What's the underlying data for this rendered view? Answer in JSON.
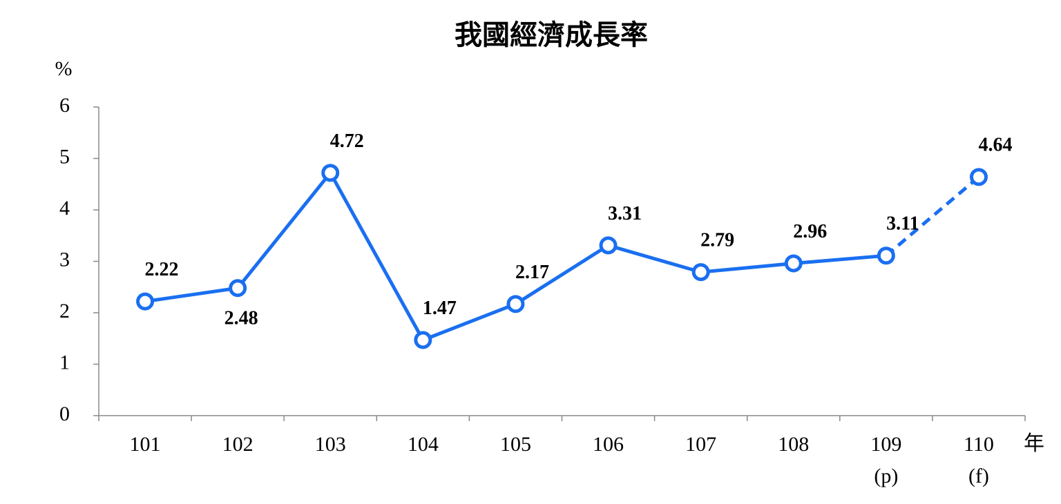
{
  "chart_data": {
    "type": "line",
    "title": "我國經濟成長率",
    "y_unit": "%",
    "x_unit": "年",
    "categories": [
      "101",
      "102",
      "103",
      "104",
      "105",
      "106",
      "107",
      "108",
      "109",
      "110"
    ],
    "category_notes": [
      null,
      null,
      null,
      null,
      null,
      null,
      null,
      null,
      "(p)",
      "(f)"
    ],
    "series": [
      {
        "color": "#1a6ff0",
        "values": [
          2.22,
          2.48,
          4.72,
          1.47,
          2.17,
          3.31,
          2.79,
          2.96,
          3.11,
          4.64
        ],
        "dashed_from": 8
      }
    ],
    "ylim": [
      0,
      6
    ],
    "yticks": [
      0,
      1,
      2,
      3,
      4,
      5,
      6
    ]
  }
}
